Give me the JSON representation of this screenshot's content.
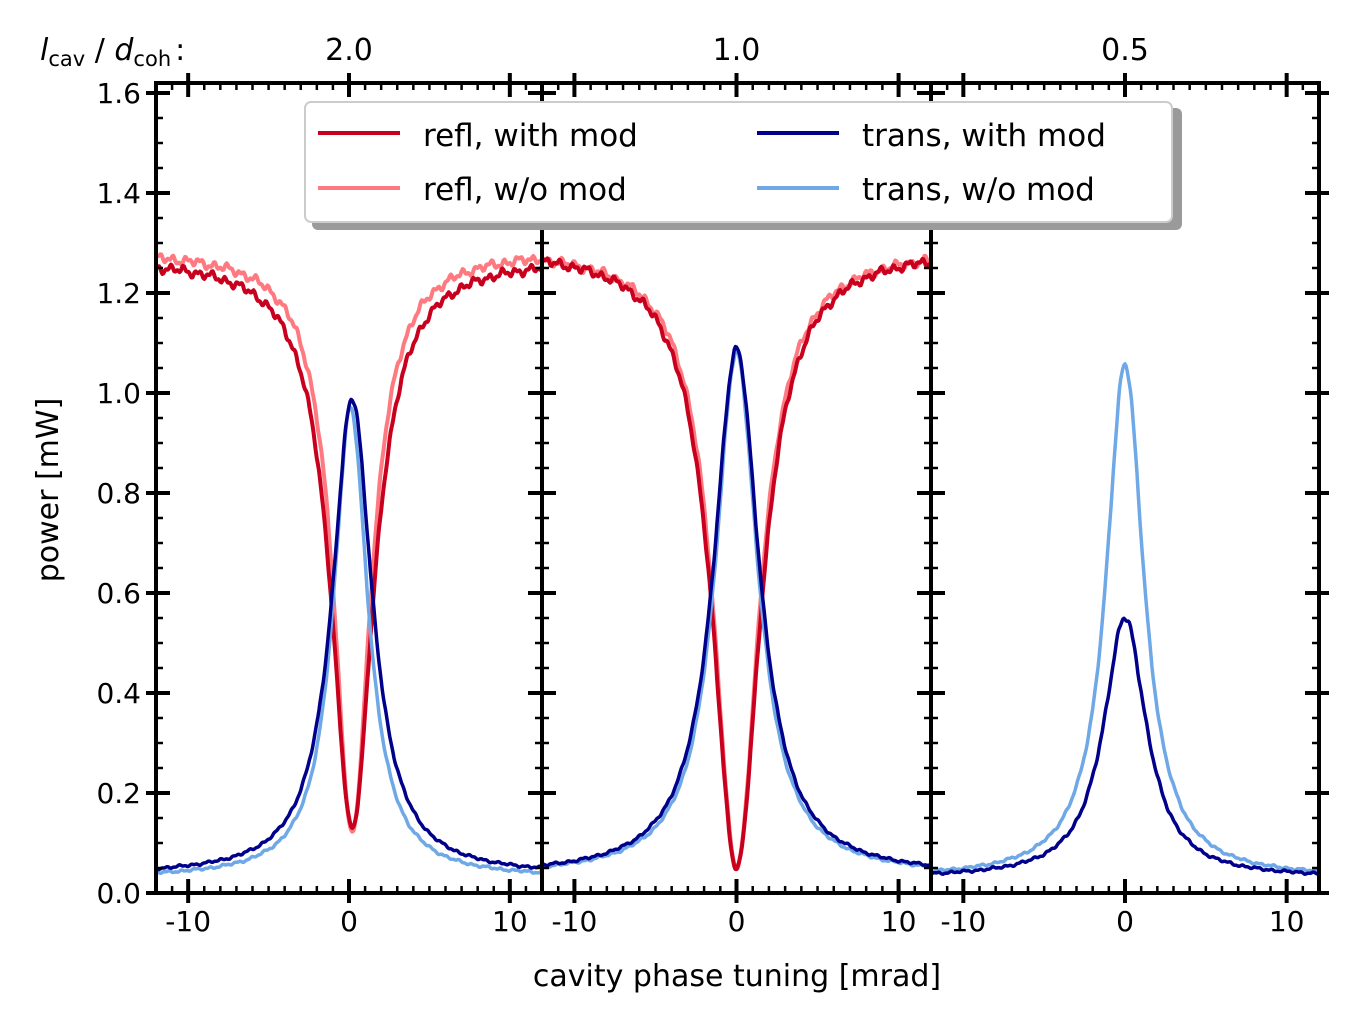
{
  "chart_data": {
    "type": "line",
    "top_label": {
      "l": "l",
      "l_sub": "cav",
      "sep": " / ",
      "d": "d",
      "d_sub": "coh",
      "colon": ":"
    },
    "xlabel": "cavity phase tuning [mrad]",
    "ylabel": "power [mW]",
    "xlim": [
      -12,
      12
    ],
    "ylim": [
      0,
      1.62
    ],
    "yticks": [
      "0.0",
      "0.2",
      "0.4",
      "0.6",
      "0.8",
      "1.0",
      "1.2",
      "1.4",
      "1.6"
    ],
    "ytick_values": [
      0,
      0.2,
      0.4,
      0.6,
      0.8,
      1.0,
      1.2,
      1.4,
      1.6
    ],
    "xticks": [
      "-10",
      "0",
      "10"
    ],
    "xtick_values": [
      -10,
      0,
      10
    ],
    "legend": {
      "position": "top-center",
      "entries": [
        {
          "label": "refl, with mod",
          "color": "#c8001e"
        },
        {
          "label": "refl, w/o mod",
          "color": "#ff7a80"
        },
        {
          "label": "trans, with mod",
          "color": "#00008b"
        },
        {
          "label": "trans, w/o mod",
          "color": "#6fa8e6"
        }
      ]
    },
    "panels": [
      {
        "ratio": "2.0",
        "series": [
          {
            "name": "refl, w/o mod",
            "color": "#ff7a80",
            "baseline": 1.285,
            "minimum": 0.12,
            "center": 0.2,
            "width": 1.4
          },
          {
            "name": "refl, with mod",
            "color": "#c8001e",
            "baseline": 1.27,
            "minimum": 0.13,
            "center": 0.2,
            "width": 1.6
          },
          {
            "name": "trans, w/o mod",
            "color": "#6fa8e6",
            "baseline": 0.03,
            "peak": 0.97,
            "center": 0.1,
            "width": 1.3
          },
          {
            "name": "trans, with mod",
            "color": "#00008b",
            "baseline": 0.035,
            "peak": 0.99,
            "center": 0.2,
            "width": 1.5
          }
        ]
      },
      {
        "ratio": "1.0",
        "series": [
          {
            "name": "refl, w/o mod",
            "color": "#ff7a80",
            "baseline": 1.29,
            "minimum": 0.05,
            "center": 0.0,
            "width": 1.7
          },
          {
            "name": "refl, with mod",
            "color": "#c8001e",
            "baseline": 1.29,
            "minimum": 0.05,
            "center": 0.0,
            "width": 1.8
          },
          {
            "name": "trans, w/o mod",
            "color": "#6fa8e6",
            "baseline": 0.035,
            "peak": 1.08,
            "center": 0.0,
            "width": 1.6
          },
          {
            "name": "trans, with mod",
            "color": "#00008b",
            "baseline": 0.035,
            "peak": 1.09,
            "center": 0.0,
            "width": 1.7
          }
        ]
      },
      {
        "ratio": "0.5",
        "series": [
          {
            "name": "trans, w/o mod",
            "color": "#6fa8e6",
            "baseline": 0.03,
            "peak": 1.06,
            "center": 0.0,
            "width": 1.4
          },
          {
            "name": "trans, with mod",
            "color": "#00008b",
            "baseline": 0.03,
            "peak": 0.55,
            "center": 0.0,
            "width": 1.6
          }
        ]
      }
    ]
  }
}
